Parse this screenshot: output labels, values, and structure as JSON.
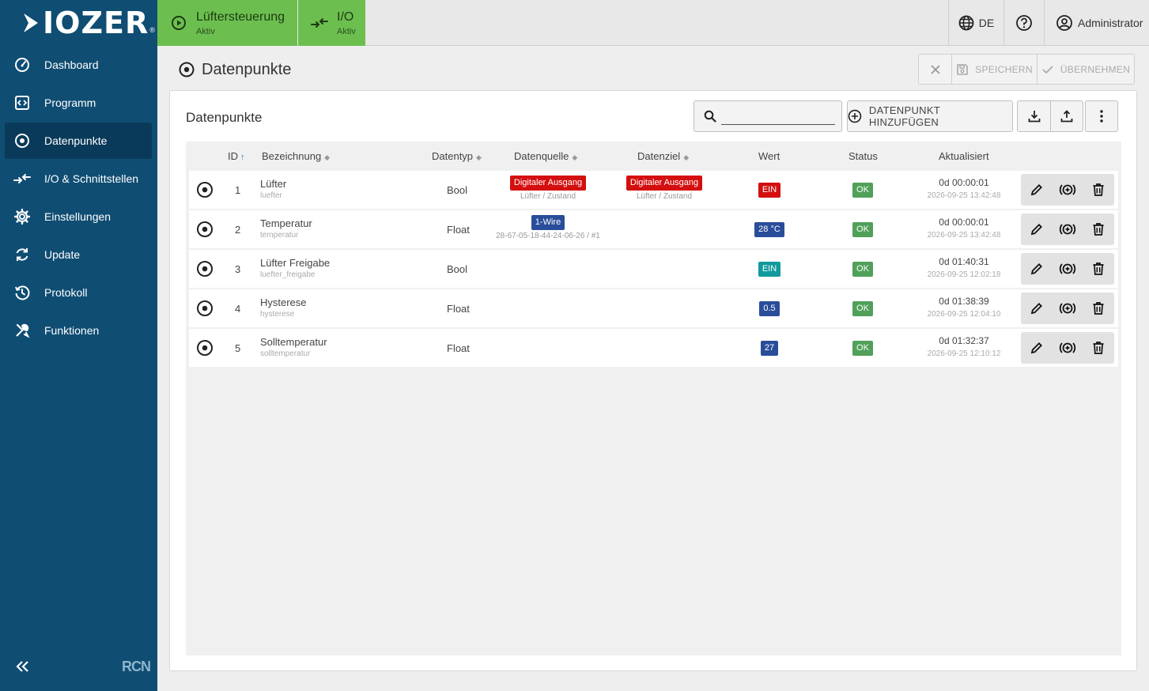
{
  "brand": {
    "logo_text": "IOZER",
    "reg_mark": "®",
    "footer_logo": "RCN"
  },
  "sidebar": {
    "items": [
      {
        "label": "Dashboard",
        "icon": "gauge-icon"
      },
      {
        "label": "Programm",
        "icon": "code-icon"
      },
      {
        "label": "Datenpunkte",
        "icon": "datapoint-icon",
        "active": true
      },
      {
        "label": "I/O & Schnittstellen",
        "icon": "arrows-in-icon"
      },
      {
        "label": "Einstellungen",
        "icon": "gear-icon"
      },
      {
        "label": "Update",
        "icon": "refresh-icon"
      },
      {
        "label": "Protokoll",
        "icon": "history-icon"
      },
      {
        "label": "Funktionen",
        "icon": "tools-icon"
      }
    ]
  },
  "topbar": {
    "tabs": [
      {
        "title": "Lüftersteuerung",
        "status": "Aktiv"
      },
      {
        "title": "I/O",
        "status": "Aktiv"
      }
    ],
    "language": "DE",
    "user": "Administrator"
  },
  "page": {
    "title": "Datenpunkte",
    "save_label": "SPEICHERN",
    "apply_label": "ÜBERNEHMEN"
  },
  "card": {
    "title": "Datenpunkte",
    "search_value": "",
    "add_label": "DATENPUNKT HINZUFÜGEN"
  },
  "table": {
    "headers": {
      "id": "ID",
      "name": "Bezeichnung",
      "type": "Datentyp",
      "source": "Datenquelle",
      "target": "Datenziel",
      "value": "Wert",
      "status": "Status",
      "updated": "Aktualisiert"
    },
    "rows": [
      {
        "id": "1",
        "name": "Lüfter",
        "key": "luefter",
        "type": "Bool",
        "source": "Digitaler Ausgang",
        "source_sub": "Lüfter / Zustand",
        "target": "Digitaler Ausgang",
        "target_sub": "Lüfter / Zustand",
        "value": "EIN",
        "status": "OK",
        "updated": "0d 00:00:01",
        "timestamp": "2026-09-25 13:42:48"
      },
      {
        "id": "2",
        "name": "Temperatur",
        "key": "temperatur",
        "type": "Float",
        "source": "1-Wire",
        "source_sub": "28-67-05-18-44-24-06-26 / #1",
        "target": "",
        "target_sub": "",
        "value": "28 °C",
        "status": "OK",
        "updated": "0d 00:00:01",
        "timestamp": "2026-09-25 13:42:48"
      },
      {
        "id": "3",
        "name": "Lüfter Freigabe",
        "key": "luefter_freigabe",
        "type": "Bool",
        "source": "",
        "source_sub": "",
        "target": "",
        "target_sub": "",
        "value": "EIN",
        "status": "OK",
        "updated": "0d 01:40:31",
        "timestamp": "2026-09-25 12:02:18"
      },
      {
        "id": "4",
        "name": "Hysterese",
        "key": "hysterese",
        "type": "Float",
        "source": "",
        "source_sub": "",
        "target": "",
        "target_sub": "",
        "value": "0.5",
        "status": "OK",
        "updated": "0d 01:38:39",
        "timestamp": "2026-09-25 12:04:10"
      },
      {
        "id": "5",
        "name": "Solltemperatur",
        "key": "solltemperatur",
        "type": "Float",
        "source": "",
        "source_sub": "",
        "target": "",
        "target_sub": "",
        "value": "27",
        "status": "OK",
        "updated": "0d 01:32:37",
        "timestamp": "2026-09-25 12:10:12"
      }
    ]
  },
  "colors": {
    "sidebar_bg": "#0f4d73",
    "sidebar_active": "#0a3a59",
    "app_tab_green": "#6cbf4f",
    "badge_red": "#d40f0f",
    "badge_navy": "#2a4d9a",
    "badge_teal": "#129a9c",
    "badge_green": "#50a05a"
  }
}
